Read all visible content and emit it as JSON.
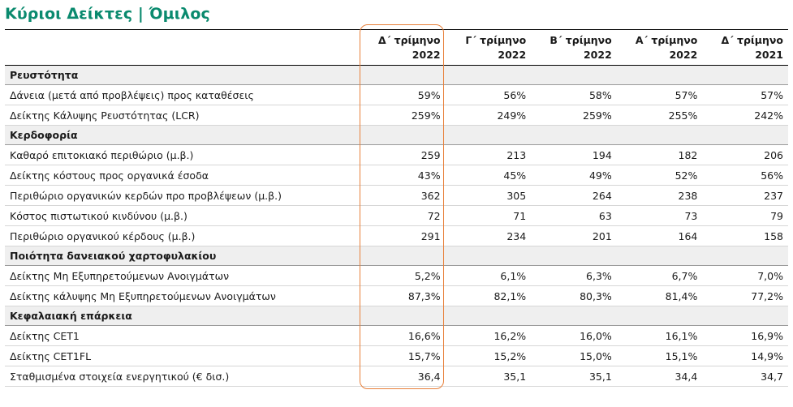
{
  "title": "Κύριοι Δείκτες | Όμιλος",
  "columns": [
    {
      "line1": "Δ΄ τρίμηνο",
      "line2": "2022"
    },
    {
      "line1": "Γ΄ τρίμηνο",
      "line2": "2022"
    },
    {
      "line1": "Β΄ τρίμηνο",
      "line2": "2022"
    },
    {
      "line1": "Α΄ τρίμηνο",
      "line2": "2022"
    },
    {
      "line1": "Δ΄ τρίμηνο",
      "line2": "2021"
    }
  ],
  "highlight_color": "#e8803a",
  "accent_color": "#0a8a6e",
  "sections": [
    {
      "name": "Ρευστότητα",
      "rows": [
        {
          "label": "Δάνεια (μετά από προβλέψεις) προς καταθέσεις",
          "values": [
            "59%",
            "56%",
            "58%",
            "57%",
            "57%"
          ]
        },
        {
          "label": "Δείκτης Κάλυψης Ρευστότητας (LCR)",
          "values": [
            "259%",
            "249%",
            "259%",
            "255%",
            "242%"
          ]
        }
      ]
    },
    {
      "name": "Κερδοφορία",
      "rows": [
        {
          "label": "Καθαρό επιτοκιακό περιθώριο (μ.β.)",
          "values": [
            "259",
            "213",
            "194",
            "182",
            "206"
          ]
        },
        {
          "label": "Δείκτης κόστους προς οργανικά έσοδα",
          "values": [
            "43%",
            "45%",
            "49%",
            "52%",
            "56%"
          ]
        },
        {
          "label": "Περιθώριο οργανικών κερδών προ προβλέψεων (μ.β.)",
          "values": [
            "362",
            "305",
            "264",
            "238",
            "237"
          ]
        },
        {
          "label": "Κόστος πιστωτικού κινδύνου (μ.β.)",
          "values": [
            "72",
            "71",
            "63",
            "73",
            "79"
          ]
        },
        {
          "label": "Περιθώριο οργανικού κέρδους (μ.β.)",
          "values": [
            "291",
            "234",
            "201",
            "164",
            "158"
          ]
        }
      ]
    },
    {
      "name": "Ποιότητα δανειακού χαρτοφυλακίου",
      "rows": [
        {
          "label": "Δείκτης Μη Εξυπηρετούμενων Ανοιγμάτων",
          "values": [
            "5,2%",
            "6,1%",
            "6,3%",
            "6,7%",
            "7,0%"
          ]
        },
        {
          "label": "Δείκτης κάλυψης Μη Εξυπηρετούμενων Ανοιγμάτων",
          "values": [
            "87,3%",
            "82,1%",
            "80,3%",
            "81,4%",
            "77,2%"
          ]
        }
      ]
    },
    {
      "name": "Κεφαλαιακή επάρκεια",
      "rows": [
        {
          "label": "Δείκτης CET1",
          "values": [
            "16,6%",
            "16,2%",
            "16,0%",
            "16,1%",
            "16,9%"
          ]
        },
        {
          "label": "Δείκτης CET1FL",
          "values": [
            "15,7%",
            "15,2%",
            "15,0%",
            "15,1%",
            "14,9%"
          ]
        },
        {
          "label": "Σταθμισμένα στοιχεία ενεργητικού (€ δισ.)",
          "values": [
            "36,4",
            "35,1",
            "35,1",
            "34,4",
            "34,7"
          ]
        }
      ]
    }
  ]
}
